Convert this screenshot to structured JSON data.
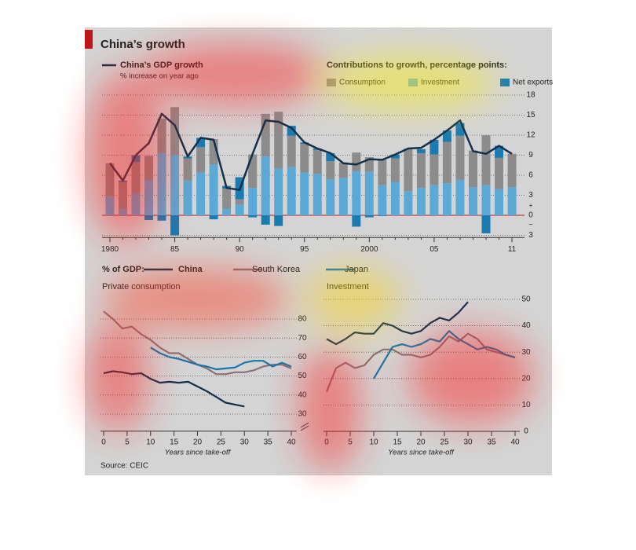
{
  "title": "China’s growth",
  "source": "Source: CEIC",
  "chart_data": [
    {
      "type": "bar",
      "stacked": true,
      "legend_title": "Contributions to growth, percentage points:",
      "categories": [
        "1980",
        null,
        null,
        null,
        null,
        "85",
        null,
        null,
        null,
        null,
        "90",
        null,
        null,
        null,
        null,
        "95",
        null,
        null,
        null,
        null,
        "2000",
        null,
        null,
        null,
        null,
        "05",
        null,
        null,
        null,
        null,
        null,
        "11"
      ],
      "series": [
        {
          "name": "Investment",
          "color": "#5aa9d6",
          "values": [
            2.8,
            1.0,
            3.3,
            5.3,
            9.3,
            9.0,
            5.2,
            6.4,
            7.6,
            1.0,
            1.6,
            4.1,
            8.8,
            7.0,
            7.2,
            6.4,
            6.2,
            5.4,
            5.6,
            6.6,
            6.5,
            4.5,
            5.0,
            3.6,
            4.1,
            4.5,
            4.8,
            5.3,
            4.2,
            4.5,
            3.9,
            4.2
          ]
        },
        {
          "name": "Consumption",
          "color": "#8c8c8c",
          "values": [
            5.0,
            4.0,
            4.7,
            3.6,
            5.2,
            7.2,
            3.3,
            3.8,
            3.8,
            3.0,
            0.8,
            5.0,
            6.4,
            8.5,
            4.7,
            4.3,
            3.6,
            2.7,
            2.3,
            2.8,
            2.2,
            3.8,
            3.5,
            6.4,
            5.2,
            4.6,
            6.2,
            6.6,
            5.5,
            7.5,
            4.7,
            5.0
          ]
        },
        {
          "name": "Net exports",
          "color": "#1b7bb0",
          "values": [
            0,
            0.2,
            1.0,
            -0.7,
            -0.8,
            -3.0,
            0.3,
            1.4,
            -0.6,
            0.4,
            3.3,
            -0.3,
            -1.4,
            -1.6,
            1.5,
            0.2,
            0.2,
            1.2,
            0,
            -1.7,
            -0.3,
            -0.1,
            0.6,
            0,
            0.6,
            2.2,
            1.7,
            1.9,
            0,
            -2.7,
            1.8,
            0
          ]
        },
        {
          "name": "China’s GDP growth",
          "subtitle": "% increase on year ago",
          "type": "line",
          "color": "#13304a",
          "values": [
            7.8,
            5.2,
            9.0,
            10.8,
            15.2,
            13.5,
            8.8,
            11.6,
            11.3,
            4.1,
            3.8,
            9.2,
            14.2,
            14.0,
            13.1,
            10.9,
            10.0,
            9.3,
            7.8,
            7.6,
            8.4,
            8.3,
            9.1,
            10.0,
            10.1,
            11.3,
            12.7,
            14.2,
            9.6,
            9.2,
            10.4,
            9.2
          ]
        }
      ],
      "ylim": [
        -3.2,
        18.6
      ],
      "yticks": [
        {
          "value": -3,
          "label": "3"
        },
        0,
        3,
        6,
        9,
        12,
        15,
        18
      ],
      "positive_sign": "+",
      "negative_sign": "−",
      "grid": true
    },
    {
      "type": "line",
      "title": "Private consumption",
      "legend_title": "% of GDP:",
      "x_label": "Years since take-off",
      "x": [
        0,
        2,
        4,
        6,
        8,
        10,
        12,
        14,
        16,
        18,
        20,
        22,
        24,
        26,
        28,
        30,
        32,
        34,
        36,
        38,
        40
      ],
      "series": [
        {
          "name": "China",
          "color": "#13304a",
          "values": [
            51.5,
            52.5,
            52,
            51,
            51.5,
            48.5,
            46.5,
            47,
            46.5,
            47,
            44.5,
            42,
            39,
            36,
            35,
            34,
            null,
            null,
            null,
            null,
            null
          ]
        },
        {
          "name": "South Korea",
          "color": "#8a7276",
          "values": [
            84,
            80,
            75,
            76,
            72,
            69,
            65,
            62,
            62,
            59,
            56,
            54,
            51,
            51,
            52,
            52,
            53,
            55,
            56,
            56,
            54
          ]
        },
        {
          "name": "Japan",
          "color": "#1b75a8",
          "values": [
            null,
            null,
            null,
            null,
            null,
            65,
            62,
            60,
            59,
            57.5,
            56,
            55,
            53.5,
            54,
            54.5,
            57,
            58,
            58,
            55,
            57,
            55
          ]
        }
      ],
      "xlim": [
        0,
        40
      ],
      "xticks": [
        0,
        5,
        10,
        15,
        20,
        25,
        30,
        35,
        40
      ],
      "ylim": [
        21,
        93
      ],
      "yticks": [
        30,
        40,
        50,
        60,
        70,
        80
      ],
      "grid": true
    },
    {
      "type": "line",
      "title": "Investment",
      "x_label": "Years since take-off",
      "x": [
        0,
        2,
        4,
        6,
        8,
        10,
        12,
        14,
        16,
        18,
        20,
        22,
        24,
        26,
        28,
        30,
        32,
        34,
        36,
        38,
        40
      ],
      "series": [
        {
          "name": "China",
          "color": "#13304a",
          "values": [
            35,
            33,
            35,
            37.5,
            37,
            37,
            41,
            40,
            38,
            37,
            38,
            41,
            43,
            42,
            45,
            49,
            null,
            null,
            null,
            null,
            null
          ]
        },
        {
          "name": "South Korea",
          "color": "#8a7276",
          "values": [
            15,
            24,
            26,
            24,
            25,
            29,
            31,
            31,
            29,
            29,
            28,
            29,
            32,
            36,
            34,
            37,
            35,
            31,
            30,
            29,
            28
          ]
        },
        {
          "name": "Japan",
          "color": "#1b75a8",
          "values": [
            null,
            null,
            null,
            null,
            null,
            20,
            26,
            32,
            33,
            32,
            33,
            35,
            34,
            38,
            35,
            33,
            31,
            32,
            31,
            29,
            28
          ]
        }
      ],
      "xlim": [
        0,
        40
      ],
      "xticks": [
        0,
        5,
        10,
        15,
        20,
        25,
        30,
        35,
        40
      ],
      "ylim": [
        0,
        53
      ],
      "yticks": [
        0,
        10,
        20,
        30,
        40,
        50
      ],
      "grid": true
    }
  ]
}
